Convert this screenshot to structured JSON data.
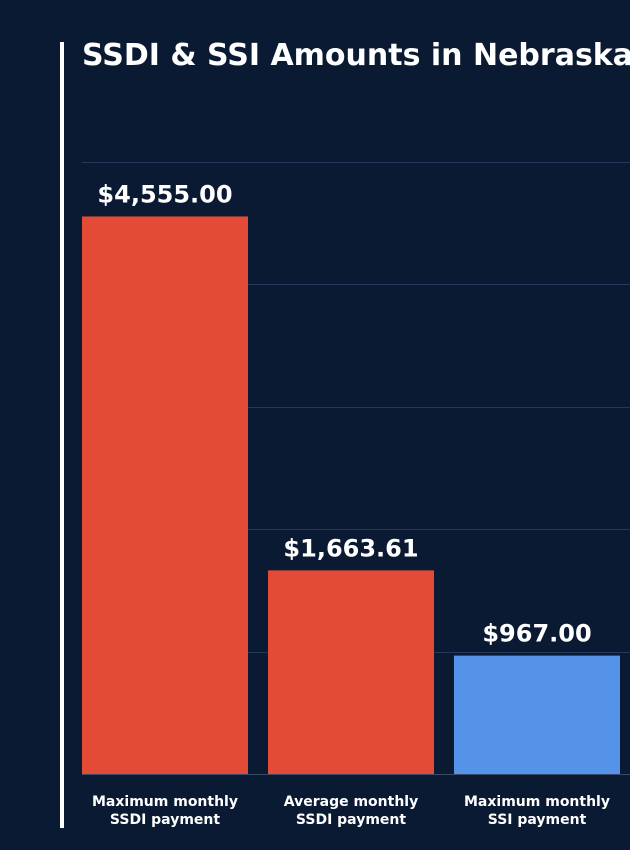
{
  "chart_data": {
    "type": "bar",
    "title": "SSDI & SSI Amounts in Nebraska",
    "categories": [
      [
        "Maximum monthly",
        "SSDI payment"
      ],
      [
        "Average monthly",
        "SSDI payment"
      ],
      [
        "Maximum monthly",
        "SSI payment"
      ]
    ],
    "values": [
      4555.0,
      1663.61,
      967.0
    ],
    "value_labels": [
      "$4,555.00",
      "$1,663.61",
      "$967.00"
    ],
    "colors": [
      "#e34b36",
      "#e34b36",
      "#5593e8"
    ],
    "ylim": [
      0,
      5000
    ],
    "gridlines": [
      1000,
      2000,
      3000,
      4000,
      5000
    ],
    "grid": true,
    "xlabel": "",
    "ylabel": "",
    "legend": false
  },
  "colors": {
    "background": "#0b1a33",
    "text": "#ffffff",
    "grid": "#26385a"
  }
}
